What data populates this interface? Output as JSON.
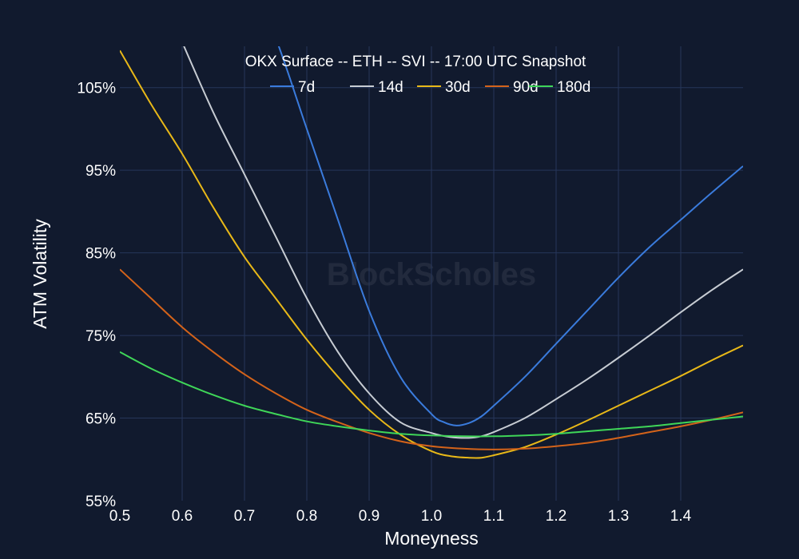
{
  "chart_data": {
    "type": "line",
    "title": "OKX Surface -- ETH -- SVI -- 17:00 UTC Snapshot",
    "xlabel": "Moneyness",
    "ylabel": "ATM Volatility",
    "xlim": [
      0.5,
      1.5
    ],
    "ylim": [
      55,
      110
    ],
    "x_ticks": [
      0.5,
      0.6,
      0.7,
      0.8,
      0.9,
      1.0,
      1.1,
      1.2,
      1.3,
      1.4
    ],
    "x_tick_labels": [
      "0.5",
      "0.6",
      "0.7",
      "0.8",
      "0.9",
      "1.0",
      "1.1",
      "1.2",
      "1.3",
      "1.4"
    ],
    "y_ticks": [
      55,
      65,
      75,
      85,
      95,
      105
    ],
    "y_tick_labels": [
      "55%",
      "65%",
      "75%",
      "85%",
      "95%",
      "105%"
    ],
    "grid": true,
    "legend_position": "top-center",
    "watermark": "BlockScholes",
    "series": [
      {
        "name": "7d",
        "color": "#3a7bdc",
        "x": [
          0.72,
          0.75,
          0.8,
          0.85,
          0.9,
          0.95,
          1.0,
          1.02,
          1.04,
          1.06,
          1.08,
          1.1,
          1.15,
          1.2,
          1.25,
          1.3,
          1.35,
          1.4,
          1.45,
          1.5
        ],
        "y": [
          115,
          111,
          100,
          89,
          78,
          70,
          65.5,
          64.5,
          64.1,
          64.4,
          65.2,
          66.5,
          70,
          74,
          78,
          82,
          85.7,
          89,
          92.3,
          95.5
        ]
      },
      {
        "name": "14d",
        "color": "#c7ccd3",
        "x": [
          0.6,
          0.65,
          0.7,
          0.75,
          0.8,
          0.85,
          0.9,
          0.95,
          1.0,
          1.03,
          1.06,
          1.08,
          1.1,
          1.15,
          1.2,
          1.25,
          1.3,
          1.35,
          1.4,
          1.45,
          1.5
        ],
        "y": [
          110.5,
          102,
          94.5,
          87,
          79.5,
          73,
          68,
          64.5,
          63.2,
          62.7,
          62.6,
          62.8,
          63.3,
          65,
          67.3,
          69.7,
          72.3,
          75,
          77.8,
          80.5,
          83
        ]
      },
      {
        "name": "30d",
        "color": "#e8b818",
        "x": [
          0.5,
          0.55,
          0.6,
          0.65,
          0.7,
          0.75,
          0.8,
          0.85,
          0.9,
          0.95,
          1.0,
          1.03,
          1.06,
          1.08,
          1.1,
          1.15,
          1.2,
          1.25,
          1.3,
          1.35,
          1.4,
          1.45,
          1.5
        ],
        "y": [
          109.5,
          103,
          97,
          90.5,
          84.5,
          79.5,
          74.5,
          70,
          66,
          63,
          61,
          60.4,
          60.2,
          60.2,
          60.5,
          61.5,
          63,
          64.7,
          66.5,
          68.3,
          70.1,
          72,
          73.8
        ]
      },
      {
        "name": "90d",
        "color": "#d4631a",
        "x": [
          0.5,
          0.55,
          0.6,
          0.65,
          0.7,
          0.75,
          0.8,
          0.85,
          0.9,
          0.95,
          1.0,
          1.05,
          1.1,
          1.15,
          1.2,
          1.25,
          1.3,
          1.35,
          1.4,
          1.45,
          1.5
        ],
        "y": [
          83,
          79.5,
          76,
          73,
          70.3,
          68,
          66,
          64.5,
          63.2,
          62.2,
          61.6,
          61.3,
          61.2,
          61.3,
          61.6,
          62,
          62.6,
          63.3,
          64,
          64.8,
          65.7
        ]
      },
      {
        "name": "180d",
        "color": "#3fd658",
        "x": [
          0.5,
          0.55,
          0.6,
          0.65,
          0.7,
          0.75,
          0.8,
          0.85,
          0.9,
          0.95,
          1.0,
          1.05,
          1.1,
          1.15,
          1.2,
          1.25,
          1.3,
          1.35,
          1.4,
          1.45,
          1.5
        ],
        "y": [
          73,
          71,
          69.3,
          67.8,
          66.5,
          65.5,
          64.6,
          64,
          63.5,
          63.1,
          62.9,
          62.8,
          62.8,
          62.9,
          63.1,
          63.4,
          63.7,
          64,
          64.4,
          64.8,
          65.2
        ]
      }
    ]
  }
}
